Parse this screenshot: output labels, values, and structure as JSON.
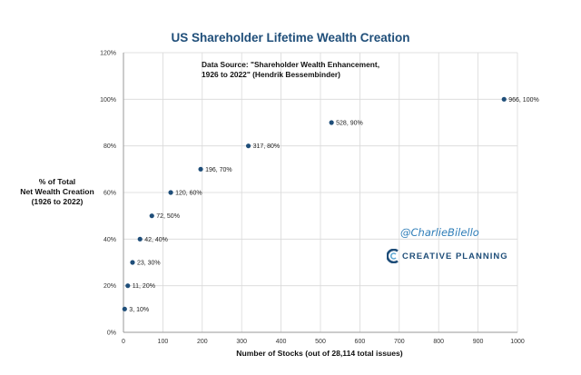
{
  "chart_data": {
    "type": "scatter",
    "title": "US Shareholder Lifetime Wealth Creation",
    "xlabel": "Number of Stocks (out of 28,114 total issues)",
    "ylabel_lines": [
      "% of Total",
      "Net Wealth Creation",
      "(1926 to 2022)"
    ],
    "xlim": [
      0,
      1000
    ],
    "ylim": [
      0,
      120
    ],
    "x_ticks": [
      0,
      100,
      200,
      300,
      400,
      500,
      600,
      700,
      800,
      900,
      1000
    ],
    "y_ticks": [
      0,
      20,
      40,
      60,
      80,
      100,
      120
    ],
    "y_tick_labels": [
      "0%",
      "20%",
      "40%",
      "60%",
      "80%",
      "100%",
      "120%"
    ],
    "grid": true,
    "points": [
      {
        "x": 3,
        "y": 10,
        "label": "3, 10%"
      },
      {
        "x": 11,
        "y": 20,
        "label": "11, 20%"
      },
      {
        "x": 23,
        "y": 30,
        "label": "23, 30%"
      },
      {
        "x": 42,
        "y": 40,
        "label": "42, 40%"
      },
      {
        "x": 72,
        "y": 50,
        "label": "72, 50%"
      },
      {
        "x": 120,
        "y": 60,
        "label": "120, 60%"
      },
      {
        "x": 196,
        "y": 70,
        "label": "196, 70%"
      },
      {
        "x": 317,
        "y": 80,
        "label": "317, 80%"
      },
      {
        "x": 528,
        "y": 90,
        "label": "528, 90%"
      },
      {
        "x": 966,
        "y": 100,
        "label": "966, 100%"
      }
    ],
    "color": "#1f4e79"
  },
  "annotation": {
    "line1": "Data Source: \"Shareholder Wealth Enhancement,",
    "line2": "1926 to 2022\" (Hendrik Bessembinder)"
  },
  "handle": "@CharlieBilello",
  "brand": {
    "name": "CREATIVE PLANNING",
    "color": "#1f4e79",
    "icon": "creative-planning-c-logo"
  }
}
